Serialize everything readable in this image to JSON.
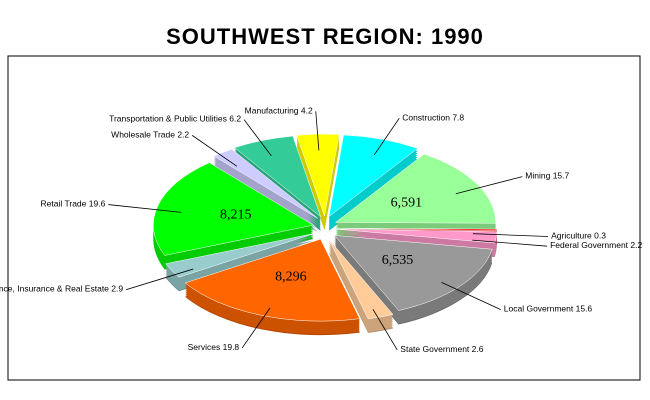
{
  "chart_data": {
    "type": "pie",
    "title": "SOUTHWEST REGION:  1990",
    "categories": [
      "Manufacturing",
      "Construction",
      "Mining",
      "Agriculture",
      "Federal Government",
      "Local Government",
      "State Government",
      "Services",
      "Finance, Insurance & Real Estate",
      "Retail Trade",
      "Wholesale Trade",
      "Transportation & Public Utilities"
    ],
    "values": [
      4.2,
      7.8,
      15.7,
      0.3,
      2.2,
      15.6,
      2.6,
      19.8,
      2.9,
      19.6,
      2.2,
      6.2
    ],
    "colors": [
      "#ffff00",
      "#00ffff",
      "#99ff99",
      "#ff0000",
      "#ff99cc",
      "#999999",
      "#ffcc99",
      "#ff6600",
      "#99cccc",
      "#00ff00",
      "#ccccff",
      "#33cc99"
    ],
    "counts": [
      null,
      null,
      {
        "value": 6591,
        "label": "6,591"
      },
      null,
      null,
      {
        "value": 6535,
        "label": "6,535"
      },
      null,
      {
        "value": 8296,
        "label": "8,296"
      },
      null,
      {
        "value": 8215,
        "label": "8,215"
      },
      null,
      null
    ]
  }
}
